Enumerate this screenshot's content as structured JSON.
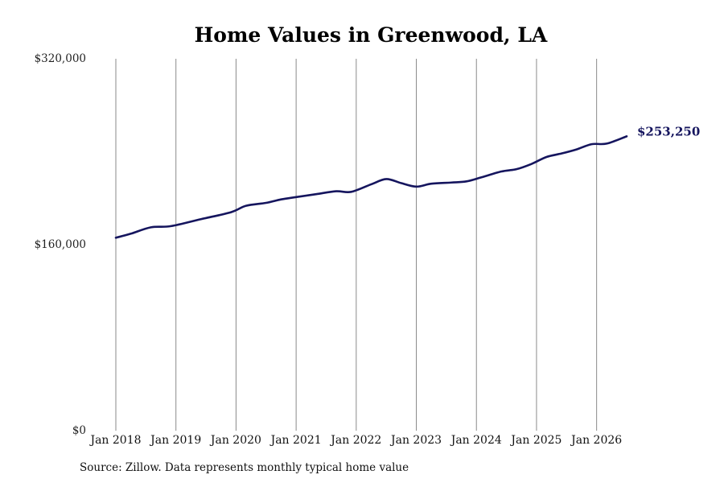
{
  "chart_data": {
    "type": "line",
    "title": "Home Values in Greenwood, LA",
    "xlabel": "",
    "ylabel": "",
    "ylim": [
      0,
      320000
    ],
    "y_ticks": [
      0,
      160000,
      320000
    ],
    "y_tick_labels": [
      "$0",
      "$160,000",
      "$320,000"
    ],
    "x_range": [
      "2018-01",
      "2026-07"
    ],
    "x_ticks": [
      "2018-01",
      "2019-01",
      "2020-01",
      "2021-01",
      "2022-01",
      "2023-01",
      "2024-01",
      "2025-01",
      "2026-01"
    ],
    "x_tick_labels": [
      "Jan 2018",
      "Jan 2019",
      "Jan 2020",
      "Jan 2021",
      "Jan 2022",
      "Jan 2023",
      "Jan 2024",
      "Jan 2025",
      "Jan 2026"
    ],
    "grid": "vertical",
    "line_color": "#15155e",
    "end_label": "$253,250",
    "series": [
      {
        "x": [
          "2018-01",
          "2018-04",
          "2018-08",
          "2018-12",
          "2019-06",
          "2019-12",
          "2020-03",
          "2020-07",
          "2020-10",
          "2021-01",
          "2021-05",
          "2021-09",
          "2021-12",
          "2022-04",
          "2022-07",
          "2022-10",
          "2023-01",
          "2023-04",
          "2023-08",
          "2023-11",
          "2024-02",
          "2024-06",
          "2024-09",
          "2024-12",
          "2025-03",
          "2025-06",
          "2025-09",
          "2025-12",
          "2026-03",
          "2026-07"
        ],
        "values": [
          166000,
          169500,
          175000,
          176000,
          182000,
          188000,
          193500,
          196000,
          199000,
          201000,
          203500,
          206000,
          205500,
          212000,
          216500,
          213000,
          210000,
          212500,
          213500,
          214500,
          218000,
          223000,
          225000,
          229500,
          235500,
          238500,
          242000,
          246500,
          247000,
          253250
        ]
      }
    ]
  },
  "footer": {
    "source": "Source: Zillow. Data represents monthly typical home value"
  }
}
